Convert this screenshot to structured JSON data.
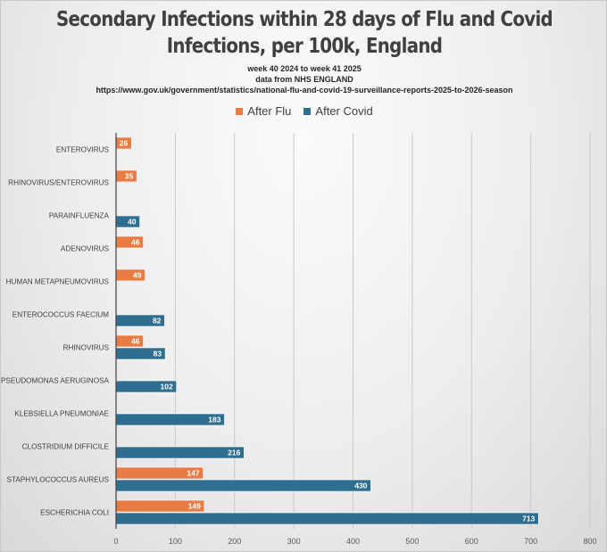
{
  "chart_data": {
    "type": "bar",
    "orientation": "horizontal",
    "title": "Secondary Infections within 28 days of Flu and Covid Infections, per 100k, England",
    "title_lines": [
      "Secondary Infections within 28 days of Flu and Covid",
      "Infections, per 100k, England"
    ],
    "subtitles": [
      "week 40 2024 to week 41 2025",
      "data from NHS ENGLAND",
      "https://www.gov.uk/government/statistics/national-flu-and-covid-19-surveillance-reports-2025-to-2026-season"
    ],
    "xlabel": "",
    "ylabel": "",
    "xlim": [
      0,
      800
    ],
    "xticks": [
      0,
      100,
      200,
      300,
      400,
      500,
      600,
      700,
      800
    ],
    "grid": true,
    "legend_position": "top",
    "categories": [
      "ENTEROVIRUS",
      "RHINOVIRUS/ENTEROVIRUS",
      "PARAINFLUENZA",
      "ADENOVIRUS",
      "HUMAN METAPNEUMOVIRUS",
      "ENTEROCOCCUS FAECIUM",
      "RHINOVIRUS",
      "PSEUDOMONAS AERUGINOSA",
      "KLEBSIELLA PNEUMONIAE",
      "CLOSTRIDIUM DIFFICILE",
      "STAPHYLOCOCCUS AUREUS",
      "ESCHERICHIA COLI"
    ],
    "series": [
      {
        "name": "After Flu",
        "color": "#E97C44",
        "values": [
          26,
          35,
          null,
          46,
          49,
          null,
          46,
          null,
          null,
          null,
          147,
          149
        ]
      },
      {
        "name": "After Covid",
        "color": "#2F6E8E",
        "values": [
          null,
          null,
          40,
          null,
          null,
          82,
          83,
          102,
          183,
          216,
          430,
          713
        ]
      }
    ]
  }
}
